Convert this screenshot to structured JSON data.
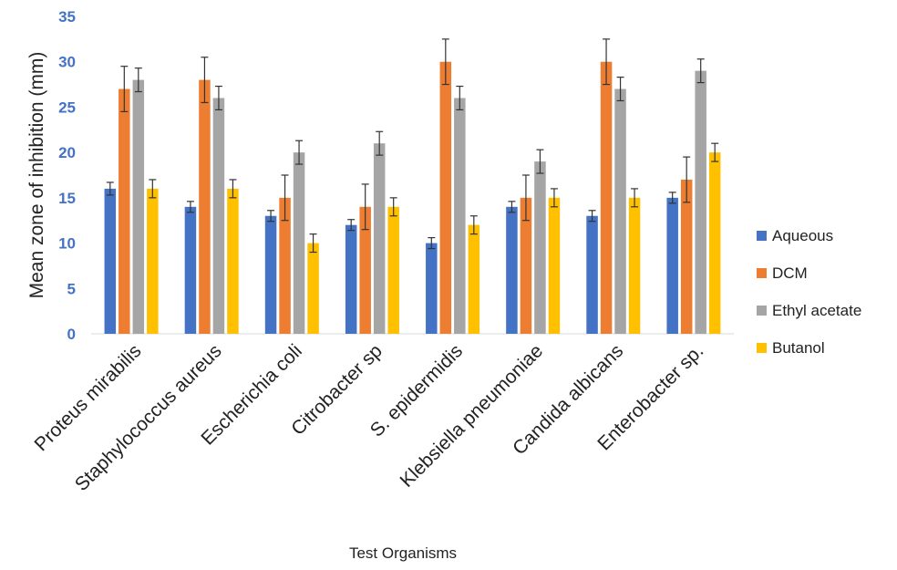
{
  "chart_data": {
    "type": "bar",
    "title": "",
    "xlabel": "Test Organisms",
    "ylabel": "Mean zone of inhibition (mm)",
    "ylim": [
      0,
      35
    ],
    "yticks": [
      "0",
      "5",
      "10",
      "15",
      "20",
      "25",
      "30",
      "35"
    ],
    "grid": false,
    "legend_position": "right",
    "categories": [
      "Proteus mirabilis",
      "Staphylococcus aureus",
      "Escherichia coli",
      "Citrobacter sp",
      "S. epidermidis",
      "Klebsiella pneumoniae",
      "Candida albicans",
      "Enterobacter sp."
    ],
    "series": [
      {
        "name": "Aqueous",
        "color": "#4472C4",
        "values": [
          16,
          14,
          13,
          12,
          10,
          14,
          13,
          15
        ],
        "errors": [
          0.7,
          0.6,
          0.6,
          0.6,
          0.6,
          0.6,
          0.6,
          0.6
        ]
      },
      {
        "name": "DCM",
        "color": "#ED7D31",
        "values": [
          27,
          28,
          15,
          14,
          30,
          15,
          30,
          17
        ],
        "errors": [
          2.5,
          2.5,
          2.5,
          2.5,
          2.5,
          2.5,
          2.5,
          2.5
        ]
      },
      {
        "name": "Ethyl acetate",
        "color": "#A5A5A5",
        "values": [
          28,
          26,
          20,
          21,
          26,
          19,
          27,
          29
        ],
        "errors": [
          1.3,
          1.3,
          1.3,
          1.3,
          1.3,
          1.3,
          1.3,
          1.3
        ]
      },
      {
        "name": "Butanol",
        "color": "#FFC000",
        "values": [
          16,
          16,
          10,
          14,
          12,
          15,
          15,
          20
        ],
        "errors": [
          1.0,
          1.0,
          1.0,
          1.0,
          1.0,
          1.0,
          1.0,
          1.0
        ]
      }
    ],
    "axis_tick_color": "#4472C4"
  }
}
